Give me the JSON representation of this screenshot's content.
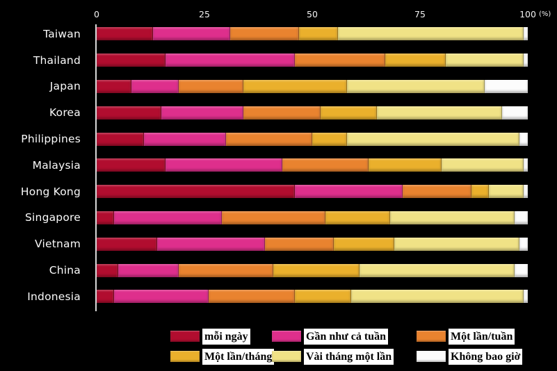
{
  "axis": {
    "ticks": [
      "0",
      "25",
      "50",
      "75",
      "100"
    ],
    "unit": "(%)",
    "min": 0,
    "max": 100
  },
  "chart_data": {
    "type": "bar",
    "stacked": true,
    "orientation": "horizontal",
    "title": "",
    "xlabel": "(%)",
    "ylabel": "",
    "xlim": [
      0,
      100
    ],
    "grid": false,
    "legend_position": "bottom",
    "categories": [
      "Taiwan",
      "Thailand",
      "Japan",
      "Korea",
      "Philippines",
      "Malaysia",
      "Hong Kong",
      "Singapore",
      "Vietnam",
      "China",
      "Indonesia"
    ],
    "series": [
      {
        "name": "mỗi ngày",
        "color": "#b10d2f",
        "values": [
          13,
          16,
          8,
          15,
          11,
          16,
          46,
          4,
          14,
          5,
          4
        ]
      },
      {
        "name": "Gần như cả tuần",
        "color": "#de2f8c",
        "values": [
          18,
          30,
          11,
          19,
          19,
          27,
          25,
          25,
          25,
          14,
          22
        ]
      },
      {
        "name": "Một lần/tuần",
        "color": "#e9832f",
        "values": [
          16,
          21,
          15,
          18,
          20,
          20,
          16,
          24,
          16,
          22,
          20
        ]
      },
      {
        "name": "Một lần/tháng",
        "color": "#eab02c",
        "values": [
          9,
          14,
          24,
          13,
          8,
          17,
          4,
          15,
          14,
          20,
          13
        ]
      },
      {
        "name": "Vài tháng một lần",
        "color": "#f0e286",
        "values": [
          43,
          18,
          32,
          29,
          40,
          19,
          8,
          29,
          29,
          36,
          40
        ]
      },
      {
        "name": "Không bao giờ",
        "color": "#fcfcfc",
        "values": [
          1,
          1,
          10,
          6,
          2,
          1,
          1,
          3,
          2,
          3,
          1
        ]
      }
    ]
  },
  "colors": {
    "background": "#000000",
    "axis_line": "#d9d9d9",
    "tick_text": "#f2f2f2",
    "category_text": "#fafafa",
    "legend_label_bg": "#ffffff",
    "legend_label_text": "#000000"
  }
}
